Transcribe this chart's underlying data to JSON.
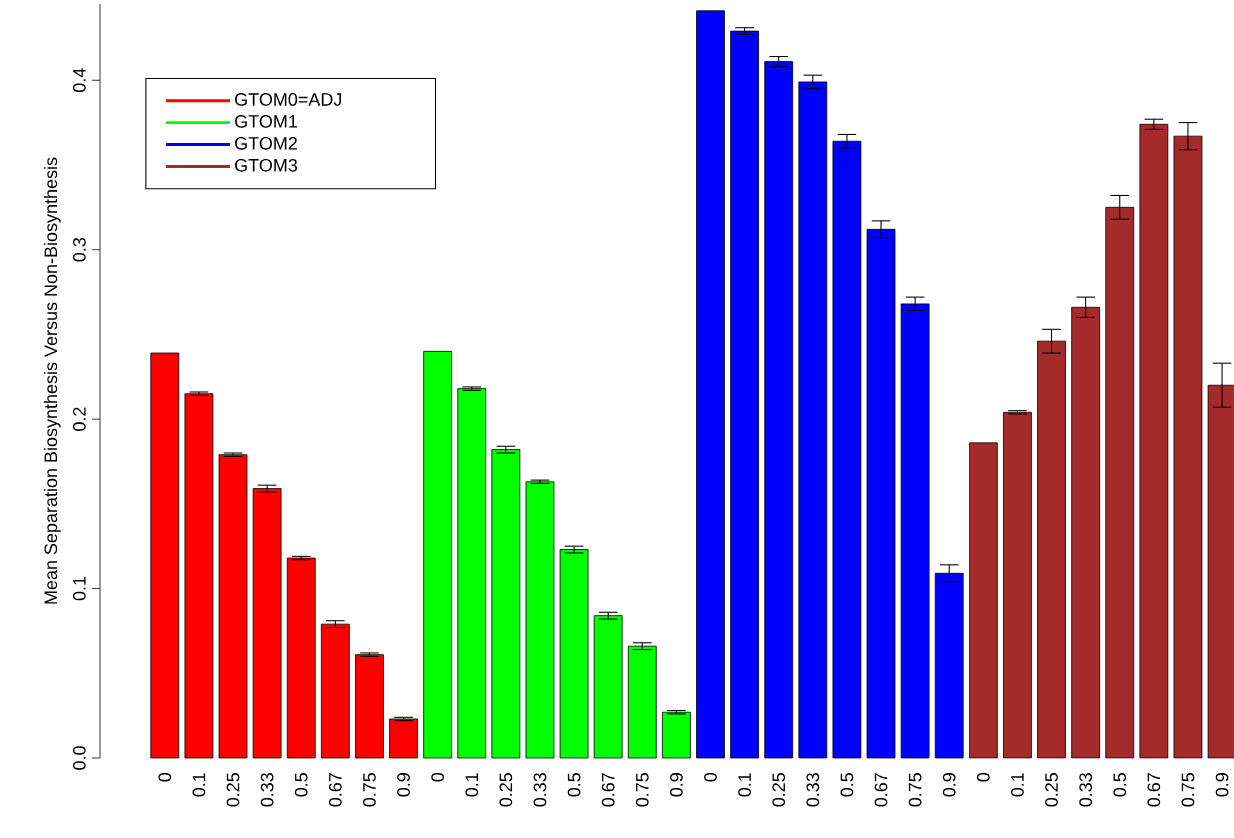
{
  "chart_data": {
    "type": "bar",
    "ylabel": "Mean Separation Biosynthesis Versus Non-Biosynthesis",
    "categories": [
      "0",
      "0.1",
      "0.25",
      "0.33",
      "0.5",
      "0.67",
      "0.75",
      "0.9",
      "0",
      "0.1",
      "0.25",
      "0.33",
      "0.5",
      "0.67",
      "0.75",
      "0.9",
      "0",
      "0.1",
      "0.25",
      "0.33",
      "0.5",
      "0.67",
      "0.75",
      "0.9",
      "0",
      "0.1",
      "0.25",
      "0.33",
      "0.5",
      "0.67",
      "0.75",
      "0.9"
    ],
    "series": [
      {
        "name": "GTOM0=ADJ",
        "color": "#ff0000",
        "values": [
          0.239,
          0.215,
          0.179,
          0.159,
          0.118,
          0.079,
          0.061,
          0.023,
          null,
          null,
          null,
          null,
          null,
          null,
          null,
          null,
          null,
          null,
          null,
          null,
          null,
          null,
          null,
          null,
          null,
          null,
          null,
          null,
          null,
          null,
          null,
          null
        ],
        "errors": [
          null,
          0.001,
          0.001,
          0.002,
          0.001,
          0.002,
          0.001,
          0.001,
          null,
          null,
          null,
          null,
          null,
          null,
          null,
          null,
          null,
          null,
          null,
          null,
          null,
          null,
          null,
          null,
          null,
          null,
          null,
          null,
          null,
          null,
          null,
          null
        ]
      },
      {
        "name": "GTOM1",
        "color": "#00ff00",
        "values": [
          null,
          null,
          null,
          null,
          null,
          null,
          null,
          null,
          0.24,
          0.218,
          0.182,
          0.163,
          0.123,
          0.084,
          0.066,
          0.027,
          null,
          null,
          null,
          null,
          null,
          null,
          null,
          null,
          null,
          null,
          null,
          null,
          null,
          null,
          null,
          null
        ],
        "errors": [
          null,
          null,
          null,
          null,
          null,
          null,
          null,
          null,
          null,
          0.001,
          0.002,
          0.001,
          0.002,
          0.002,
          0.002,
          0.001,
          null,
          null,
          null,
          null,
          null,
          null,
          null,
          null,
          null,
          null,
          null,
          null,
          null,
          null,
          null,
          null
        ]
      },
      {
        "name": "GTOM2",
        "color": "#0000ff",
        "values": [
          null,
          null,
          null,
          null,
          null,
          null,
          null,
          null,
          null,
          null,
          null,
          null,
          null,
          null,
          null,
          null,
          0.441,
          0.429,
          0.411,
          0.399,
          0.364,
          0.312,
          0.268,
          0.109,
          null,
          null,
          null,
          null,
          null,
          null,
          null,
          null
        ],
        "errors": [
          null,
          null,
          null,
          null,
          null,
          null,
          null,
          null,
          null,
          null,
          null,
          null,
          null,
          null,
          null,
          null,
          null,
          0.002,
          0.003,
          0.004,
          0.004,
          0.005,
          0.004,
          0.005,
          null,
          null,
          null,
          null,
          null,
          null,
          null,
          null
        ]
      },
      {
        "name": "GTOM3",
        "color": "#a52a2a",
        "values": [
          null,
          null,
          null,
          null,
          null,
          null,
          null,
          null,
          null,
          null,
          null,
          null,
          null,
          null,
          null,
          null,
          null,
          null,
          null,
          null,
          null,
          null,
          null,
          null,
          0.186,
          0.204,
          0.246,
          0.266,
          0.325,
          0.374,
          0.367,
          0.22
        ],
        "errors": [
          null,
          null,
          null,
          null,
          null,
          null,
          null,
          null,
          null,
          null,
          null,
          null,
          null,
          null,
          null,
          null,
          null,
          null,
          null,
          null,
          null,
          null,
          null,
          null,
          null,
          0.001,
          0.007,
          0.006,
          0.007,
          0.003,
          0.008,
          0.013
        ]
      }
    ],
    "ylim": [
      0,
      0.445
    ],
    "yticks": [
      {
        "value": 0,
        "label": "0.0"
      },
      0.1,
      0.2,
      0.3,
      0.4
    ],
    "legend": "top left",
    "grid": false
  }
}
